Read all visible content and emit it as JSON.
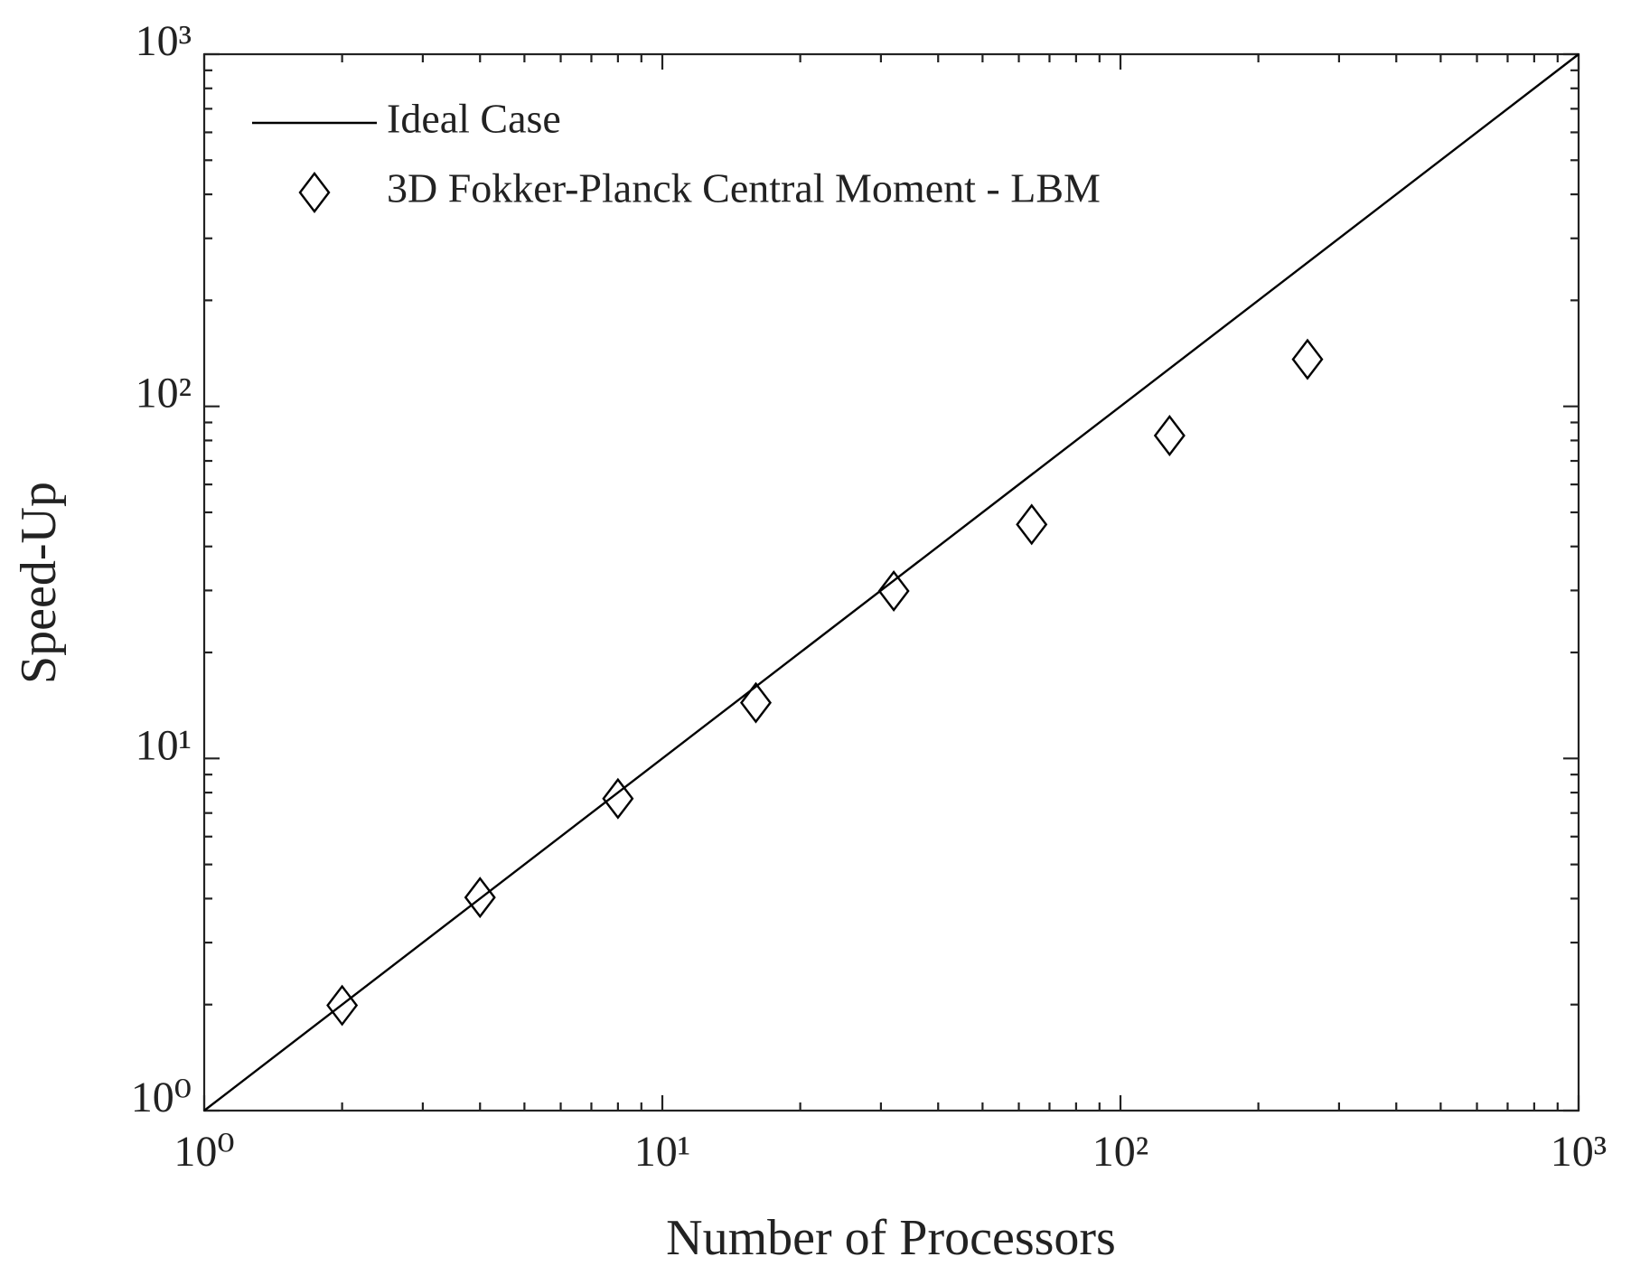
{
  "chart_data": {
    "type": "line",
    "x_label": "Number of Processors",
    "y_label": "Speed-Up",
    "xscale": "log",
    "yscale": "log",
    "xlim": [
      1,
      1000
    ],
    "ylim": [
      1,
      1000
    ],
    "xticks": [
      {
        "value": 1,
        "label": "10⁰"
      },
      {
        "value": 10,
        "label": "10¹"
      },
      {
        "value": 100,
        "label": "10²"
      },
      {
        "value": 1000,
        "label": "10³"
      }
    ],
    "yticks": [
      {
        "value": 1,
        "label": "10⁰"
      },
      {
        "value": 10,
        "label": "10¹"
      },
      {
        "value": 100,
        "label": "10²"
      },
      {
        "value": 1000,
        "label": "10³"
      }
    ],
    "legend": "top-left",
    "series": [
      {
        "name": "Ideal Case",
        "style": "line",
        "color": "#000000",
        "x": [
          1,
          1000
        ],
        "values": [
          1,
          1000
        ]
      },
      {
        "name": "3D Fokker-Planck Central Moment - LBM",
        "style": "diamond",
        "color": "#000000",
        "x": [
          2,
          4,
          8,
          16,
          32,
          64,
          128,
          256
        ],
        "values": [
          1.99,
          4.03,
          7.69,
          14.4,
          29.9,
          46.2,
          82.6,
          136
        ]
      }
    ]
  }
}
